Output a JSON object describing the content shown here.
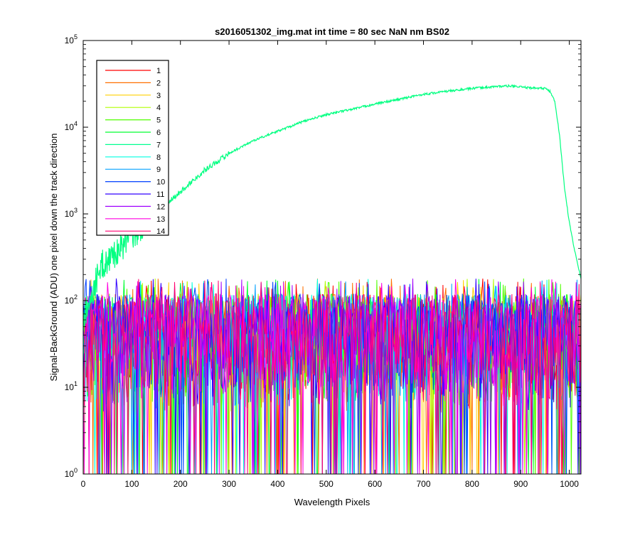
{
  "chart_data": {
    "type": "line",
    "title": "s2016051302_img.mat int time = 80 sec  NaN nm BS02",
    "xlabel": "Wavelength Pixels",
    "ylabel": "Signal-BackGround (ADU) one pixel down the track direction",
    "xlim": [
      0,
      1024
    ],
    "ylim": [
      1,
      100000
    ],
    "yscale": "log",
    "x_ticks": [
      0,
      100,
      200,
      300,
      400,
      500,
      600,
      700,
      800,
      900,
      1000
    ],
    "y_ticks": [
      {
        "base": "10",
        "exp": "0",
        "value": 1
      },
      {
        "base": "10",
        "exp": "1",
        "value": 10
      },
      {
        "base": "10",
        "exp": "2",
        "value": 100
      },
      {
        "base": "10",
        "exp": "3",
        "value": 1000
      },
      {
        "base": "10",
        "exp": "4",
        "value": 10000
      },
      {
        "base": "10",
        "exp": "5",
        "value": 100000
      }
    ],
    "grid": false,
    "legend_position": "top-left",
    "signal_series": {
      "name": "7",
      "color": "#00ff80",
      "x": [
        0,
        10,
        20,
        30,
        40,
        50,
        60,
        80,
        100,
        130,
        160,
        200,
        250,
        300,
        350,
        400,
        450,
        500,
        550,
        600,
        650,
        700,
        750,
        800,
        850,
        880,
        900,
        920,
        950,
        960,
        970,
        980,
        990,
        1000,
        1010,
        1024
      ],
      "y": [
        60,
        90,
        130,
        190,
        260,
        290,
        330,
        430,
        550,
        800,
        1150,
        1800,
        3200,
        5000,
        7000,
        9000,
        11500,
        14000,
        16000,
        18500,
        21000,
        24000,
        26000,
        28000,
        29500,
        30000,
        29000,
        28500,
        28000,
        26000,
        20000,
        8000,
        2000,
        800,
        400,
        180
      ]
    },
    "noise_band": {
      "min": 1,
      "max": 180,
      "typical": [
        5,
        120
      ]
    },
    "series": [
      {
        "name": "1",
        "color": "#ff0000"
      },
      {
        "name": "2",
        "color": "#ff7000"
      },
      {
        "name": "3",
        "color": "#ffd000"
      },
      {
        "name": "4",
        "color": "#b0ff00"
      },
      {
        "name": "5",
        "color": "#50ff00"
      },
      {
        "name": "6",
        "color": "#00ff30"
      },
      {
        "name": "7",
        "color": "#00ff90"
      },
      {
        "name": "8",
        "color": "#00ffe0"
      },
      {
        "name": "9",
        "color": "#00a0ff"
      },
      {
        "name": "10",
        "color": "#0040ff"
      },
      {
        "name": "11",
        "color": "#3000ff"
      },
      {
        "name": "12",
        "color": "#a000ff"
      },
      {
        "name": "13",
        "color": "#ff00e0"
      },
      {
        "name": "14",
        "color": "#ff0070"
      }
    ]
  }
}
